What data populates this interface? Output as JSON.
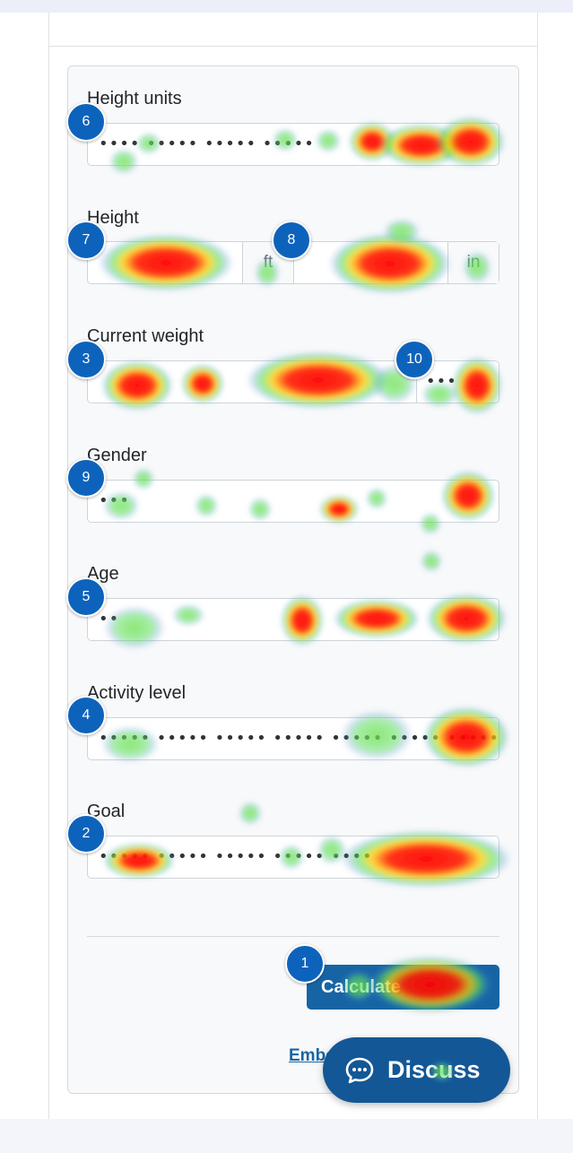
{
  "form": {
    "fields": [
      {
        "label": "Height units",
        "value": "•••• ••••• ••••• •••••",
        "badge": "6"
      },
      {
        "label": "Height",
        "feet_unit": "ft",
        "inches_unit": "in",
        "badge": "7",
        "badge_inches": "8"
      },
      {
        "label": "Current weight",
        "value_unit": "•••",
        "badge": "3",
        "badge_unit": "10"
      },
      {
        "label": "Gender",
        "value": "•••",
        "badge": "9"
      },
      {
        "label": "Age",
        "value": "••",
        "badge": "5"
      },
      {
        "label": "Activity level",
        "value": "•••••  •••••  •••••  •••••  •••••  •••••  •••••",
        "badge": "4"
      },
      {
        "label": "Goal",
        "value": "•••••  •••••  •••••  •••••  ••••",
        "badge": "2"
      }
    ],
    "calculate_label": "Calculate",
    "calculate_badge": "1",
    "embed_label": "Embed"
  },
  "discuss": {
    "label": "Discuss"
  },
  "colors": {
    "badge": "#0d63bb",
    "button": "#1764a4",
    "discuss": "#135796"
  }
}
